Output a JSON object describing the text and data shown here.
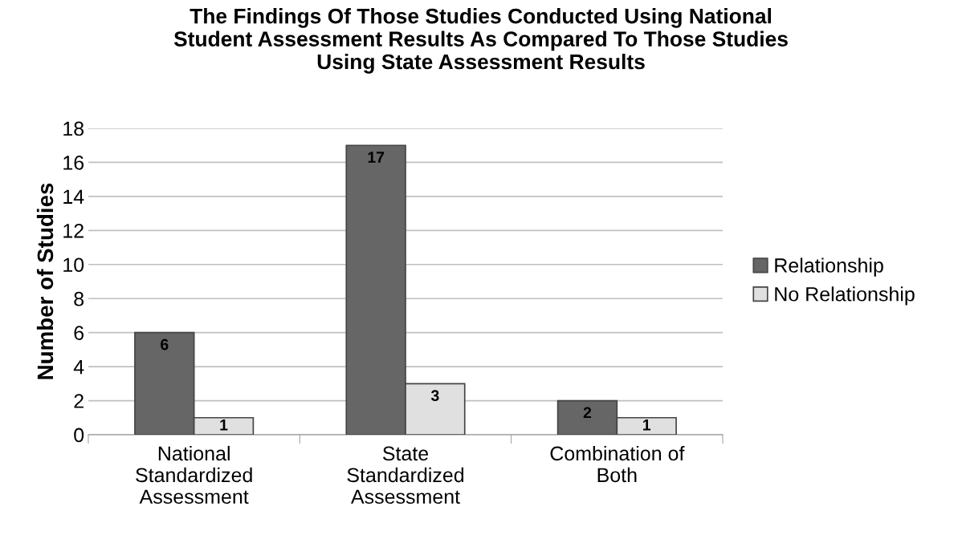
{
  "chart_data": {
    "type": "bar",
    "title": "The Findings Of Those Studies Conducted Using National\nStudent Assessment Results As Compared To Those Studies\nUsing State Assessment Results",
    "ylabel": "Number of Studies",
    "categories": [
      "National\nStandardized\nAssessment",
      "State\nStandardized\nAssessment",
      "Combination of\nBoth"
    ],
    "series": [
      {
        "name": "Relationship",
        "color": "#666666",
        "values": [
          6,
          17,
          2
        ]
      },
      {
        "name": "No Relationship",
        "color": "#e0e0e0",
        "values": [
          1,
          3,
          1
        ]
      }
    ],
    "ylim": [
      0,
      18
    ],
    "yticks": [
      0,
      2,
      4,
      6,
      8,
      10,
      12,
      14,
      16,
      18
    ],
    "grid": "y",
    "legend": "right",
    "data_labels": true
  }
}
